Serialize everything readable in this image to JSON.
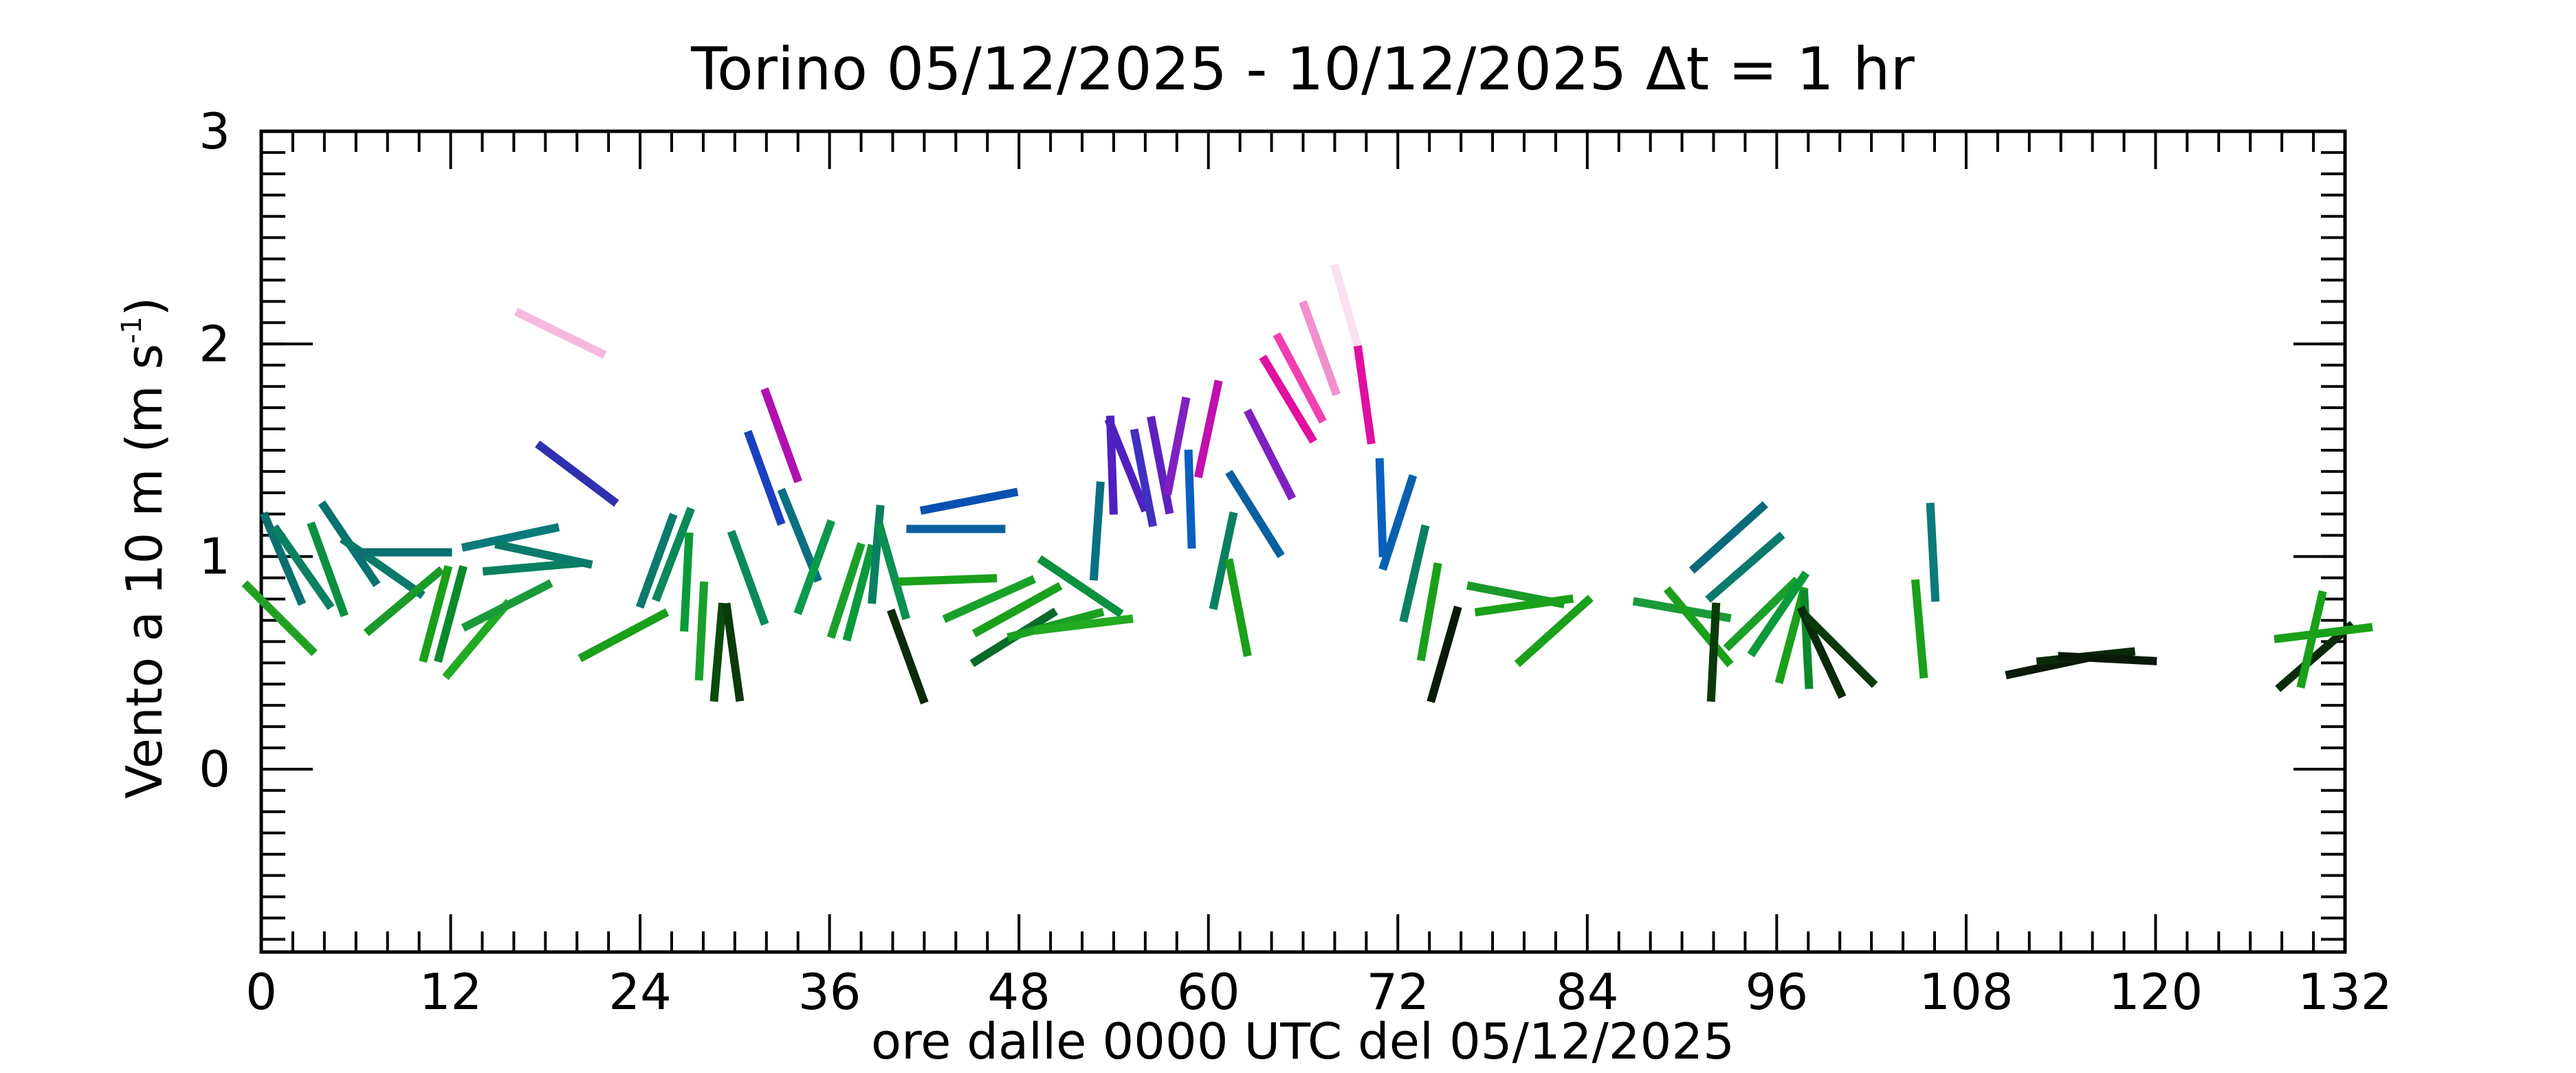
{
  "chart_data": {
    "type": "stick",
    "title": "Torino   05/12/2025 - 10/12/2025   Δt = 1 hr",
    "xlabel": "ore dalle 0000 UTC del 05/12/2025",
    "ylabel": "Vento a 10 m (m s",
    "ylabel_sup": "-1",
    "ylabel_end": ")",
    "xlim": [
      0,
      132
    ],
    "xticks": [
      0,
      12,
      24,
      36,
      48,
      60,
      72,
      84,
      96,
      108,
      120,
      132
    ],
    "ylim": [
      -0.86,
      3
    ],
    "yticks": [
      0,
      1,
      2,
      3
    ],
    "x": [
      1.37,
      1.16,
      2.63,
      4.21,
      5.58,
      7.68,
      8.95,
      9.05,
      11.05,
      12.0,
      13.68,
      15.79,
      17.16,
      17.89,
      15.58,
      18.95,
      20.0,
      22.95,
      25.05,
      26.11,
      26.95,
      27.89,
      28.95,
      29.89,
      30.84,
      31.89,
      32.95,
      34.11,
      35.05,
      37.05,
      37.89,
      38.95,
      40.0,
      40.95,
      44.0,
      44.84,
      43.47,
      46.11,
      47.68,
      47.89,
      50.32,
      52.11,
      51.89,
      52.95,
      53.89,
      54.84,
      55.89,
      56.95,
      58.0,
      58.84,
      60.0,
      60.95,
      61.89,
      62.95,
      63.89,
      65.05,
      65.79,
      67.05,
      68.84,
      69.89,
      70.95,
      72.0,
      73.05,
      74.0,
      74.95,
      79.47,
      80.0,
      81.89,
      90.0,
      91.05,
      92.95,
      94.0,
      92.0,
      95.05,
      96.11,
      96.95,
      97.89,
      98.84,
      100.0,
      105.05,
      105.89,
      113.58,
      115.58,
      116.95,
      130.11,
      129.89,
      130.63
    ],
    "values": [
      0.99,
      0.71,
      0.95,
      0.94,
      1.06,
      0.95,
      1.02,
      0.79,
      0.73,
      0.73,
      0.61,
      1.09,
      0.95,
      1.01,
      0.77,
      2.05,
      1.39,
      0.63,
      0.98,
      1.01,
      0.88,
      0.65,
      0.55,
      0.55,
      0.9,
      1.37,
      1.57,
      1.1,
      0.95,
      0.84,
      0.83,
      1.01,
      0.93,
      0.53,
      1.13,
      1.26,
      0.89,
      0.8,
      0.62,
      0.75,
      0.68,
      0.68,
      0.86,
      1.12,
      1.43,
      1.43,
      1.37,
      1.43,
      1.52,
      1.27,
      1.6,
      0.98,
      0.76,
      1.2,
      1.48,
      1.74,
      1.84,
      1.98,
      2.15,
      1.76,
      1.23,
      1.16,
      0.92,
      0.74,
      0.54,
      0.82,
      0.77,
      0.65,
      0.75,
      0.67,
      1.09,
      0.95,
      0.55,
      0.73,
      0.73,
      0.63,
      0.61,
      0.55,
      0.56,
      0.66,
      1.02,
      0.49,
      0.53,
      0.52,
      0.53,
      0.61,
      0.64
    ],
    "angles": [
      -23,
      -45,
      -35,
      -20,
      -34,
      -55,
      90,
      50,
      15,
      15,
      40,
      78,
      85,
      -78,
      63,
      -64,
      -53,
      62,
      20,
      21,
      3,
      3,
      5,
      -8,
      -20,
      -20,
      -20,
      -22,
      20,
      18,
      15,
      5,
      -16,
      -20,
      90,
      79,
      88,
      66,
      58,
      61,
      75,
      83,
      -56,
      4,
      -2,
      -22,
      -11,
      -11,
      11,
      -2,
      12,
      12,
      -11,
      -32,
      -27,
      -31,
      -28,
      -20,
      -16,
      -8,
      -2,
      18,
      13,
      10,
      16,
      -79,
      82,
      48,
      -80,
      -40,
      48,
      49,
      3,
      46,
      34,
      15,
      -3,
      -25,
      -45,
      -5,
      -3,
      78,
      84,
      -87,
      49,
      13,
      83
    ],
    "colors": [
      "#0a7070",
      "#22a022",
      "#0a8060",
      "#0a9040",
      "#0a7070",
      "#0a7a6a",
      "#0a7070",
      "#1a9a2a",
      "#1aa01a",
      "#0a8a2a",
      "#22aa22",
      "#0a7a7a",
      "#0a8060",
      "#0a7a6a",
      "#1a9a3a",
      "#f7b8e0",
      "#3030b0",
      "#1aa01a",
      "#0a7a6a",
      "#0a8a5a",
      "#0a9a3a",
      "#1aa02a",
      "#0a4a0a",
      "#0a3a0a",
      "#0a8a5a",
      "#1a40c0",
      "#b010b0",
      "#0a7080",
      "#0a9a4a",
      "#1aa02a",
      "#0a9a3a",
      "#0a8060",
      "#0a9050",
      "#0a2a0a",
      "#0a60a0",
      "#0a50b0",
      "#1aa01a",
      "#1aa02a",
      "#0a6a2a",
      "#1aa01a",
      "#1aa022",
      "#22aa22",
      "#0a9040",
      "#0a7080",
      "#5020c0",
      "#5020c0",
      "#4030c0",
      "#6020c0",
      "#8020c0",
      "#0a60c0",
      "#c010b0",
      "#0a8060",
      "#1aa01a",
      "#0a60a0",
      "#8020c0",
      "#e010a0",
      "#f040b0",
      "#f090d0",
      "#fce0f0",
      "#e010a0",
      "#0a60c0",
      "#0a60b0",
      "#0a8060",
      "#1aa01a",
      "#0a1a0a",
      "#1a9a2a",
      "#1aa01a",
      "#1aa01a",
      "#1a9a3a",
      "#1aa01a",
      "#0a6a7a",
      "#0a7a6a",
      "#0a3a0a",
      "#1aa02a",
      "#0a9a3a",
      "#1aa01a",
      "#0a8a2a",
      "#0a2a0a",
      "#0a3a0a",
      "#1aa01a",
      "#0a7a7a",
      "#0a1a0a",
      "#0a2a0a",
      "#0a1a0a",
      "#0a2a0a",
      "#1aa01a",
      "#1aa01a"
    ]
  }
}
